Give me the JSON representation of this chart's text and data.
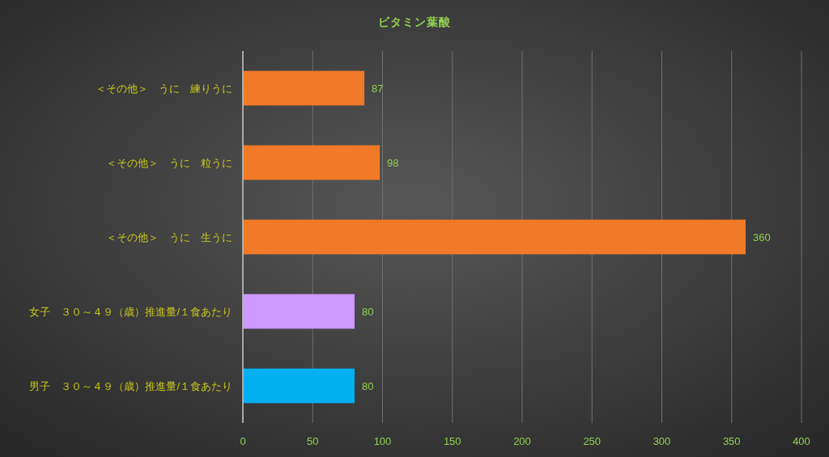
{
  "chart_data": {
    "type": "bar",
    "orientation": "horizontal",
    "title": "ビタミン葉酸",
    "categories": [
      "＜その他＞　うに　練りうに",
      "＜その他＞　うに　粒うに",
      "＜その他＞　うに　生うに",
      "女子　３０～４９（歳）推進量/１食あたり",
      "男子　３０～４９（歳）推進量/１食あたり"
    ],
    "values": [
      87,
      98,
      360,
      80,
      80
    ],
    "colors": [
      "#f07a28",
      "#f07a28",
      "#f07a28",
      "#cc99ff",
      "#00b0f0"
    ],
    "xlim": [
      0,
      400
    ],
    "xticks": [
      0,
      50,
      100,
      150,
      200,
      250,
      300,
      350,
      400
    ],
    "grid": "x",
    "data_labels": true
  }
}
